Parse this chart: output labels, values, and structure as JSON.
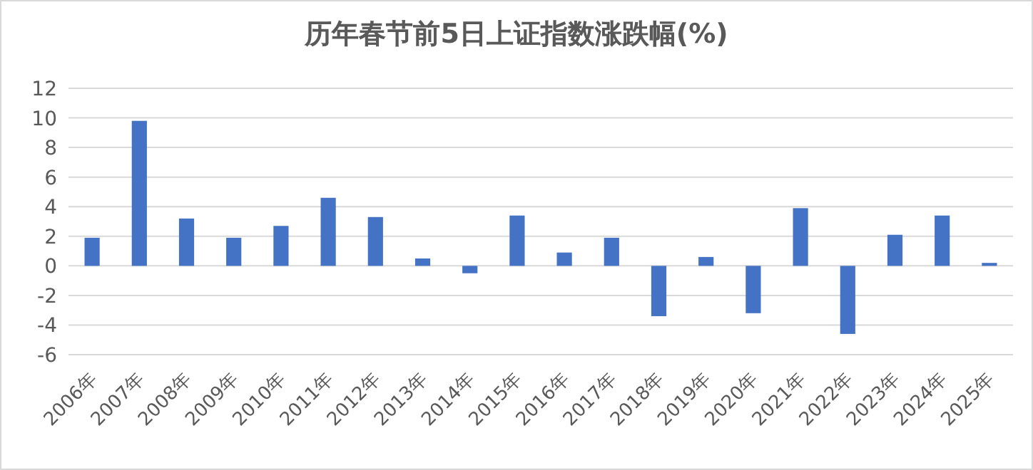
{
  "chart_data": {
    "type": "bar",
    "title": "历年春节前5日上证指数涨跌幅(%)",
    "categories": [
      "2006年",
      "2007年",
      "2008年",
      "2009年",
      "2010年",
      "2011年",
      "2012年",
      "2013年",
      "2014年",
      "2015年",
      "2016年",
      "2017年",
      "2018年",
      "2019年",
      "2020年",
      "2021年",
      "2022年",
      "2023年",
      "2024年",
      "2025年"
    ],
    "values": [
      1.9,
      9.8,
      3.2,
      1.9,
      2.7,
      4.6,
      3.3,
      0.5,
      -0.5,
      3.4,
      0.9,
      1.9,
      -3.4,
      0.6,
      -3.2,
      3.9,
      -4.6,
      2.1,
      3.4,
      0.2
    ],
    "color": "#4472c4",
    "ylim": [
      -6,
      12
    ],
    "yticks": [
      -6,
      -4,
      -2,
      0,
      2,
      4,
      6,
      8,
      10,
      12
    ],
    "grid": "y"
  }
}
